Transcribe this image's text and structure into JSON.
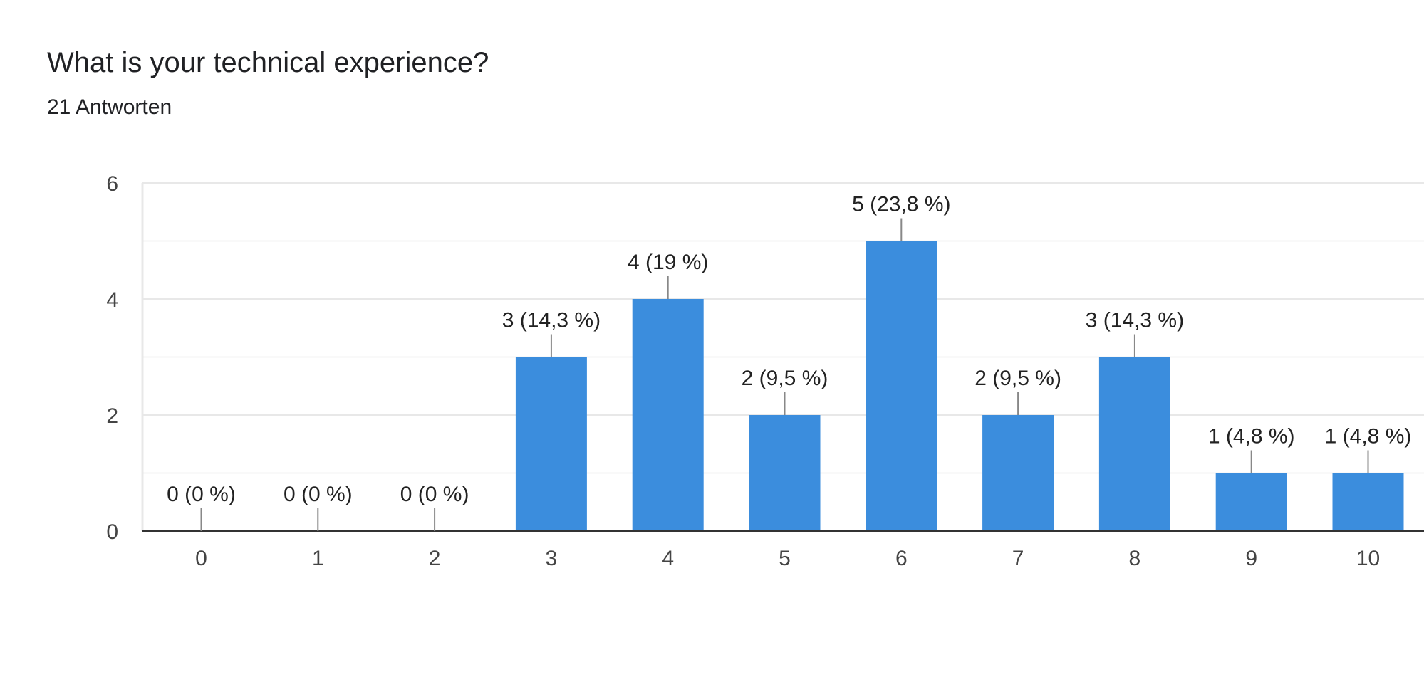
{
  "header": {
    "title": "What is your technical experience?",
    "subtitle": "21 Antworten"
  },
  "chart_data": {
    "type": "bar",
    "title": "What is your technical experience?",
    "subtitle": "21 Antworten",
    "categories": [
      "0",
      "1",
      "2",
      "3",
      "4",
      "5",
      "6",
      "7",
      "8",
      "9",
      "10"
    ],
    "values": [
      0,
      0,
      0,
      3,
      4,
      2,
      5,
      2,
      3,
      1,
      1
    ],
    "data_labels": [
      "0 (0 %)",
      "0 (0 %)",
      "0 (0 %)",
      "3 (14,3 %)",
      "4 (19 %)",
      "2 (9,5 %)",
      "5 (23,8 %)",
      "2 (9,5 %)",
      "3 (14,3 %)",
      "1 (4,8 %)",
      "1 (4,8 %)"
    ],
    "y_ticks": [
      "0",
      "2",
      "4",
      "6"
    ],
    "ylim": [
      0,
      6
    ],
    "grid": true,
    "bar_color": "#3b8ddd"
  }
}
